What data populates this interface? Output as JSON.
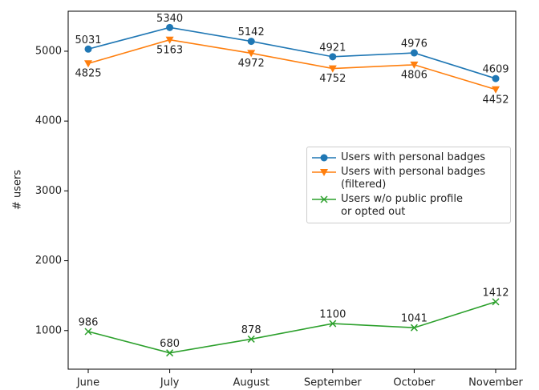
{
  "chart_data": {
    "type": "line",
    "categories": [
      "June",
      "July",
      "August",
      "September",
      "October",
      "November"
    ],
    "series": [
      {
        "name": "Users with personal badges",
        "color": "#1f77b4",
        "marker": "o",
        "values": [
          5031,
          5340,
          5142,
          4921,
          4976,
          4609
        ]
      },
      {
        "name": "Users with personal badges\n(filtered)",
        "color": "#ff7f0e",
        "marker": "v",
        "values": [
          4825,
          5163,
          4972,
          4752,
          4806,
          4452
        ]
      },
      {
        "name": "Users w/o public profile\nor opted out",
        "color": "#2ca02c",
        "marker": "x",
        "values": [
          986,
          680,
          878,
          1100,
          1041,
          1412
        ]
      }
    ],
    "ylabel": "# users",
    "ylim": [
      447,
      5573
    ],
    "yticks": [
      1000,
      2000,
      3000,
      4000,
      5000
    ],
    "grid": false,
    "legend": "center right"
  }
}
